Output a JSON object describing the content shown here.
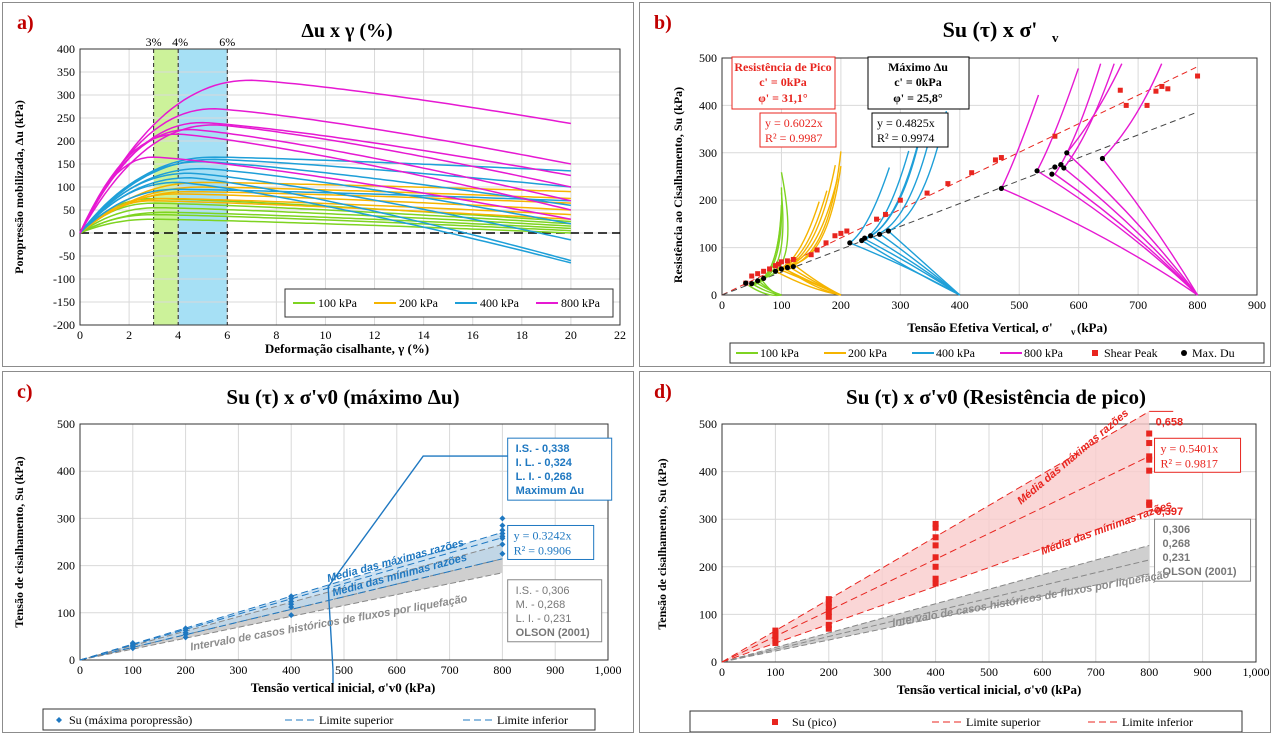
{
  "chart_data": [
    {
      "panel": "a)",
      "type": "line",
      "title": "Δu x γ (%)",
      "xlabel": "Deformação cisalhante, γ (%)",
      "ylabel": "Poropressão mobilizada, Δu (kPa)",
      "xlim": [
        0,
        22
      ],
      "ylim": [
        -200,
        400
      ],
      "xticks": [
        0,
        2,
        4,
        6,
        8,
        10,
        12,
        14,
        16,
        18,
        20,
        22
      ],
      "yticks": [
        -200,
        -150,
        -100,
        -50,
        0,
        50,
        100,
        150,
        200,
        250,
        300,
        350,
        400
      ],
      "zones": [
        {
          "from": 3,
          "to": 4,
          "color": "#ccf29a",
          "label_from": "3%",
          "label_to": "4%"
        },
        {
          "from": 4,
          "to": 6,
          "color": "#a6e0f5",
          "label_to": "6%"
        }
      ],
      "legend_position": "bottom-right",
      "groups": [
        {
          "name": "100 kPa",
          "color": "#7ed321",
          "curves": [
            {
              "peak": 75,
              "gpeak": 3.0,
              "end": 25
            },
            {
              "peak": 65,
              "gpeak": 3.0,
              "end": 20
            },
            {
              "peak": 55,
              "gpeak": 3.2,
              "end": 15
            },
            {
              "peak": 45,
              "gpeak": 3.5,
              "end": 10
            },
            {
              "peak": 40,
              "gpeak": 3.0,
              "end": 5
            },
            {
              "peak": 30,
              "gpeak": 3.0,
              "end": 0
            }
          ]
        },
        {
          "name": "200 kPa",
          "color": "#f5b400",
          "curves": [
            {
              "peak": 110,
              "gpeak": 5.0,
              "end": 90
            },
            {
              "peak": 100,
              "gpeak": 5.0,
              "end": 75
            },
            {
              "peak": 90,
              "gpeak": 4.5,
              "end": 65
            },
            {
              "peak": 85,
              "gpeak": 4.0,
              "end": 50
            },
            {
              "peak": 75,
              "gpeak": 3.5,
              "end": 40
            },
            {
              "peak": 70,
              "gpeak": 3.0,
              "end": 30
            }
          ]
        },
        {
          "name": "400 kPa",
          "color": "#1e9fd8",
          "curves": [
            {
              "peak": 165,
              "gpeak": 5.5,
              "end": 135
            },
            {
              "peak": 160,
              "gpeak": 5.5,
              "end": 100
            },
            {
              "peak": 155,
              "gpeak": 5.0,
              "end": 60
            },
            {
              "peak": 140,
              "gpeak": 5.0,
              "end": 20
            },
            {
              "peak": 130,
              "gpeak": 4.5,
              "end": -15
            },
            {
              "peak": 120,
              "gpeak": 4.5,
              "end": -60
            },
            {
              "peak": 110,
              "gpeak": 4.0,
              "end": -65
            },
            {
              "peak": 95,
              "gpeak": 4.0,
              "end": 70
            }
          ]
        },
        {
          "name": "800 kPa",
          "color": "#e619d2",
          "curves": [
            {
              "peak": 332,
              "gpeak": 7.0,
              "end": 238
            },
            {
              "peak": 270,
              "gpeak": 5.5,
              "end": 150
            },
            {
              "peak": 240,
              "gpeak": 5.0,
              "end": 125
            },
            {
              "peak": 235,
              "gpeak": 5.5,
              "end": 100
            },
            {
              "peak": 225,
              "gpeak": 4.5,
              "end": 70
            },
            {
              "peak": 215,
              "gpeak": 4.0,
              "end": 50
            },
            {
              "peak": 165,
              "gpeak": 3.0,
              "end": 30
            }
          ]
        }
      ]
    },
    {
      "panel": "b)",
      "type": "scatter",
      "title": "Su (τ) x σ'v",
      "xlabel": "Tensão Efetiva Vertical, σ'v (kPa)",
      "ylabel": "Resistência ao Cisalhamento, Su (kPa)",
      "xlim": [
        0,
        900
      ],
      "ylim": [
        0,
        500
      ],
      "xticks": [
        0,
        100,
        200,
        300,
        400,
        500,
        600,
        700,
        800,
        900
      ],
      "yticks": [
        0,
        100,
        200,
        300,
        400,
        500
      ],
      "annotations": {
        "peak_title": "Resistência de Pico",
        "peak_c": "c' =  0kPa",
        "peak_phi": "φ' = 31,1°",
        "peak_eq": "y = 0.6022x",
        "peak_r2": "R² = 0.9987",
        "du_title": "Máximo Δu",
        "du_c": "c' =  0kPa",
        "du_phi": "φ' = 25,8°",
        "du_eq": "y = 0.4825x",
        "du_r2": "R² = 0.9974"
      },
      "trendlines": [
        {
          "name": "peak",
          "slope": 0.6022,
          "color": "#e8251f"
        },
        {
          "name": "du",
          "slope": 0.4825,
          "color": "#444444"
        }
      ],
      "stress_paths": [
        {
          "name": "100 kPa",
          "color": "#7ed321",
          "start": 100,
          "tips": [
            [
              55,
              28
            ],
            [
              50,
              24
            ],
            [
              60,
              32
            ],
            [
              45,
              20
            ],
            [
              65,
              35
            ]
          ]
        },
        {
          "name": "200 kPa",
          "color": "#f5b400",
          "start": 200,
          "tips": [
            [
              95,
              55
            ],
            [
              100,
              58
            ],
            [
              110,
              62
            ],
            [
              120,
              65
            ],
            [
              90,
              50
            ],
            [
              105,
              57
            ]
          ]
        },
        {
          "name": "400 kPa",
          "color": "#1e9fd8",
          "start": 400,
          "tips": [
            [
              215,
              110
            ],
            [
              240,
              118
            ],
            [
              250,
              125
            ],
            [
              265,
              130
            ],
            [
              280,
              135
            ],
            [
              235,
              115
            ]
          ]
        },
        {
          "name": "800 kPa",
          "color": "#e619d2",
          "start": 800,
          "tips": [
            [
              470,
              225
            ],
            [
              530,
              262
            ],
            [
              560,
              255
            ],
            [
              575,
              268
            ],
            [
              580,
              300
            ],
            [
              640,
              288
            ]
          ]
        }
      ],
      "shear_peak_name": "Shear Peak",
      "shear_peak": [
        [
          40,
          25
        ],
        [
          50,
          40
        ],
        [
          60,
          45
        ],
        [
          70,
          50
        ],
        [
          80,
          55
        ],
        [
          90,
          62
        ],
        [
          95,
          65
        ],
        [
          100,
          70
        ],
        [
          110,
          72
        ],
        [
          120,
          75
        ],
        [
          150,
          85
        ],
        [
          160,
          95
        ],
        [
          175,
          110
        ],
        [
          190,
          125
        ],
        [
          200,
          130
        ],
        [
          210,
          135
        ],
        [
          260,
          160
        ],
        [
          275,
          170
        ],
        [
          300,
          200
        ],
        [
          345,
          215
        ],
        [
          380,
          235
        ],
        [
          420,
          258
        ],
        [
          460,
          285
        ],
        [
          470,
          290
        ],
        [
          560,
          335
        ],
        [
          670,
          432
        ],
        [
          730,
          430
        ],
        [
          740,
          440
        ],
        [
          750,
          435
        ],
        [
          800,
          462
        ],
        [
          680,
          400
        ],
        [
          715,
          400
        ]
      ],
      "max_du_name": "Max. Du",
      "max_du": [
        [
          40,
          25
        ],
        [
          50,
          24
        ],
        [
          60,
          30
        ],
        [
          70,
          35
        ],
        [
          90,
          50
        ],
        [
          100,
          55
        ],
        [
          110,
          58
        ],
        [
          120,
          60
        ],
        [
          215,
          110
        ],
        [
          235,
          115
        ],
        [
          240,
          120
        ],
        [
          250,
          125
        ],
        [
          265,
          128
        ],
        [
          280,
          135
        ],
        [
          470,
          225
        ],
        [
          530,
          262
        ],
        [
          555,
          255
        ],
        [
          560,
          270
        ],
        [
          570,
          275
        ],
        [
          575,
          268
        ],
        [
          580,
          300
        ],
        [
          640,
          288
        ]
      ]
    },
    {
      "panel": "c)",
      "type": "scatter",
      "title": "Su (τ) x σ'v0 (máximo Δu)",
      "xlabel": "Tensão vertical inicial, σ'v0 (kPa)",
      "ylabel": "Tensão de cisalhamento, Su (kPa)",
      "xlim": [
        0,
        1000
      ],
      "ylim": [
        0,
        500
      ],
      "xticks": [
        0,
        100,
        200,
        300,
        400,
        500,
        600,
        700,
        800,
        900,
        1000
      ],
      "xtick_labels": [
        "0",
        "100",
        "200",
        "300",
        "400",
        "500",
        "600",
        "700",
        "800",
        "900",
        "1,000"
      ],
      "yticks": [
        0,
        100,
        200,
        300,
        400,
        500
      ],
      "series_name": "Su (máxima poropressão)",
      "points": [
        [
          100,
          25
        ],
        [
          100,
          28
        ],
        [
          100,
          31
        ],
        [
          100,
          34
        ],
        [
          100,
          36
        ],
        [
          200,
          48
        ],
        [
          200,
          54
        ],
        [
          200,
          58
        ],
        [
          200,
          63
        ],
        [
          200,
          67
        ],
        [
          400,
          95
        ],
        [
          400,
          112
        ],
        [
          400,
          118
        ],
        [
          400,
          124
        ],
        [
          400,
          130
        ],
        [
          400,
          135
        ],
        [
          800,
          225
        ],
        [
          800,
          245
        ],
        [
          800,
          258
        ],
        [
          800,
          262
        ],
        [
          800,
          268
        ],
        [
          800,
          275
        ],
        [
          800,
          285
        ],
        [
          800,
          300
        ]
      ],
      "bound_upper_name": "Limite superior",
      "bound_lower_name": "Limite inferior",
      "band_blue": {
        "upper": 0.338,
        "mid": 0.324,
        "lower": 0.268
      },
      "band_olson": {
        "upper": 0.306,
        "mid": 0.268,
        "lower": 0.231
      },
      "box_blue": [
        "I.S. - 0,338",
        "I. L.  - 0,324",
        "L. I. - 0,268",
        "Maximum Δu"
      ],
      "box_olson": [
        "I.S. - 0,306",
        "M. - 0,268",
        "L. I. - 0,231",
        "OLSON (2001)"
      ],
      "eq": "y = 0.3242x",
      "r2": "R² = 0.9906",
      "text_max": "Média das máximas razões",
      "text_min": "Média das mínimas razões",
      "text_hist": "Intervalo de casos históricos de fluxos por liquefação"
    },
    {
      "panel": "d)",
      "type": "scatter",
      "title": "Su (τ) x σ'v0 (Resistência de pico)",
      "xlabel": "Tensão vertical inicial, σ'v0 (kPa)",
      "ylabel": "Tensão de cisalhamento, Su (kPa)",
      "xlim": [
        0,
        1000
      ],
      "ylim": [
        0,
        500
      ],
      "xticks": [
        0,
        100,
        200,
        300,
        400,
        500,
        600,
        700,
        800,
        900,
        1000
      ],
      "xtick_labels": [
        "0",
        "100",
        "200",
        "300",
        "400",
        "500",
        "600",
        "700",
        "800",
        "900",
        "1,000"
      ],
      "yticks": [
        0,
        100,
        200,
        300,
        400,
        500
      ],
      "series_name": "Su (pico)",
      "points": [
        [
          100,
          40
        ],
        [
          100,
          48
        ],
        [
          100,
          55
        ],
        [
          100,
          60
        ],
        [
          100,
          66
        ],
        [
          200,
          70
        ],
        [
          200,
          78
        ],
        [
          200,
          95
        ],
        [
          200,
          105
        ],
        [
          200,
          115
        ],
        [
          200,
          125
        ],
        [
          200,
          132
        ],
        [
          400,
          165
        ],
        [
          400,
          175
        ],
        [
          400,
          200
        ],
        [
          400,
          220
        ],
        [
          400,
          245
        ],
        [
          400,
          262
        ],
        [
          400,
          282
        ],
        [
          400,
          290
        ],
        [
          800,
          330
        ],
        [
          800,
          335
        ],
        [
          800,
          402
        ],
        [
          800,
          425
        ],
        [
          800,
          432
        ],
        [
          800,
          460
        ],
        [
          800,
          480
        ]
      ],
      "bound_upper_name": "Limite superior",
      "bound_lower_name": "Limite inferior",
      "band_red": {
        "upper": 0.658,
        "lower": 0.397
      },
      "band_olson": {
        "upper": 0.306,
        "mid": 0.268,
        "lower": 0.231
      },
      "lbl_upper": "0,658",
      "lbl_lower": "0,397",
      "olson_labels": [
        "0,306",
        "0,268",
        "0,231",
        "OLSON (2001)"
      ],
      "eq": "y = 0.5401x",
      "r2": "R² = 0.9817",
      "text_max": "Média das máximas razões",
      "text_min": "Média das mínimas razões",
      "text_hist": "Intervalo de casos históricos de fluxos por liquefação"
    }
  ]
}
